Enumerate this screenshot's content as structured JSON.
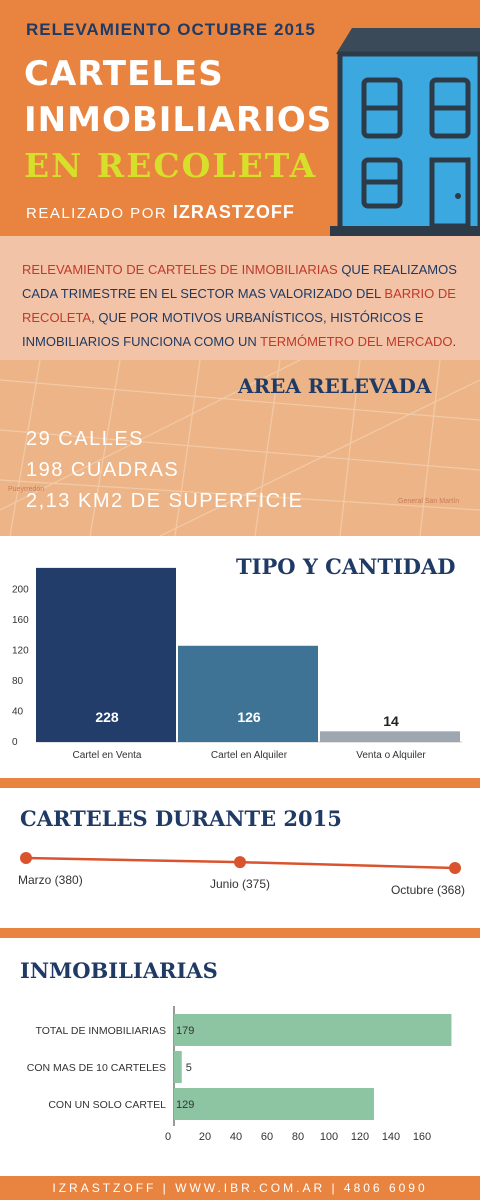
{
  "header": {
    "subtitle": "RELEVAMIENTO OCTUBRE 2015",
    "title_line1": "CARTELES",
    "title_line2": "INMOBILIARIOS",
    "title_line3": "EN RECOLETA",
    "byline_prefix": "REALIZADO POR",
    "byline_brand": "IZRASTZOFF"
  },
  "intro": {
    "p1": "RELEVAMIENTO DE CARTELES DE INMOBILIARIAS",
    "p2": " QUE REALIZAMOS CADA TRIMESTRE EN EL SECTOR MAS VALORIZADO DEL ",
    "p3": "BARRIO DE RECOLETA",
    "p4": ", QUE POR MOTIVOS URBANÍSTICOS, HISTÓRICOS E INMOBILIARIOS FUNCIONA COMO UN ",
    "p5": "TERMÓMETRO DEL MERCADO",
    "p6": "."
  },
  "area": {
    "title": "AREA RELEVADA",
    "stats": [
      "29 CALLES",
      "198 CUADRAS",
      "2,13 KM2 DE SUPERFICIE"
    ],
    "map_labels": [
      "Pueyrredón",
      "General San Martín"
    ]
  },
  "footer": {
    "text": "IZRASTZOFF  |  WWW.IBR.COM.AR  |  4806 6090"
  },
  "colors": {
    "orange": "#e8843f",
    "navy": "#1f3a64",
    "lime": "#d6df2a",
    "red": "#c0392b",
    "green": "#8dc5a3"
  },
  "chart_data": [
    {
      "type": "bar",
      "title": "TIPO Y CANTIDAD",
      "categories": [
        "Cartel en Venta",
        "Cartel en Alquiler",
        "Venta o Alquiler"
      ],
      "values": [
        228,
        126,
        14
      ],
      "data_labels": [
        "228",
        "126",
        "14"
      ],
      "bar_colors": [
        "#233d6a",
        "#3f7396",
        "#9ea7b0"
      ],
      "yticks": [
        0,
        40,
        80,
        120,
        160,
        200
      ],
      "ylim": [
        0,
        220
      ],
      "grid": false
    },
    {
      "type": "line",
      "title": "CARTELES DURANTE 2015",
      "points": [
        {
          "label": "Marzo (380)",
          "value": 380
        },
        {
          "label": "Junio (375)",
          "value": 375
        },
        {
          "label": "Octubre (368)",
          "value": 368
        }
      ],
      "line_color": "#d9542e"
    },
    {
      "type": "bar",
      "orientation": "horizontal",
      "title": "INMOBILIARIAS",
      "categories": [
        "TOTAL DE INMOBILIARIAS",
        "CON MAS DE 10 CARTELES",
        "CON UN SOLO CARTEL"
      ],
      "values": [
        179,
        5,
        129
      ],
      "data_labels": [
        "179",
        "5",
        "129"
      ],
      "xticks": [
        0,
        20,
        40,
        60,
        80,
        100,
        120,
        140,
        160
      ],
      "xlim": [
        0,
        180
      ],
      "bar_color": "#8dc5a3"
    }
  ]
}
